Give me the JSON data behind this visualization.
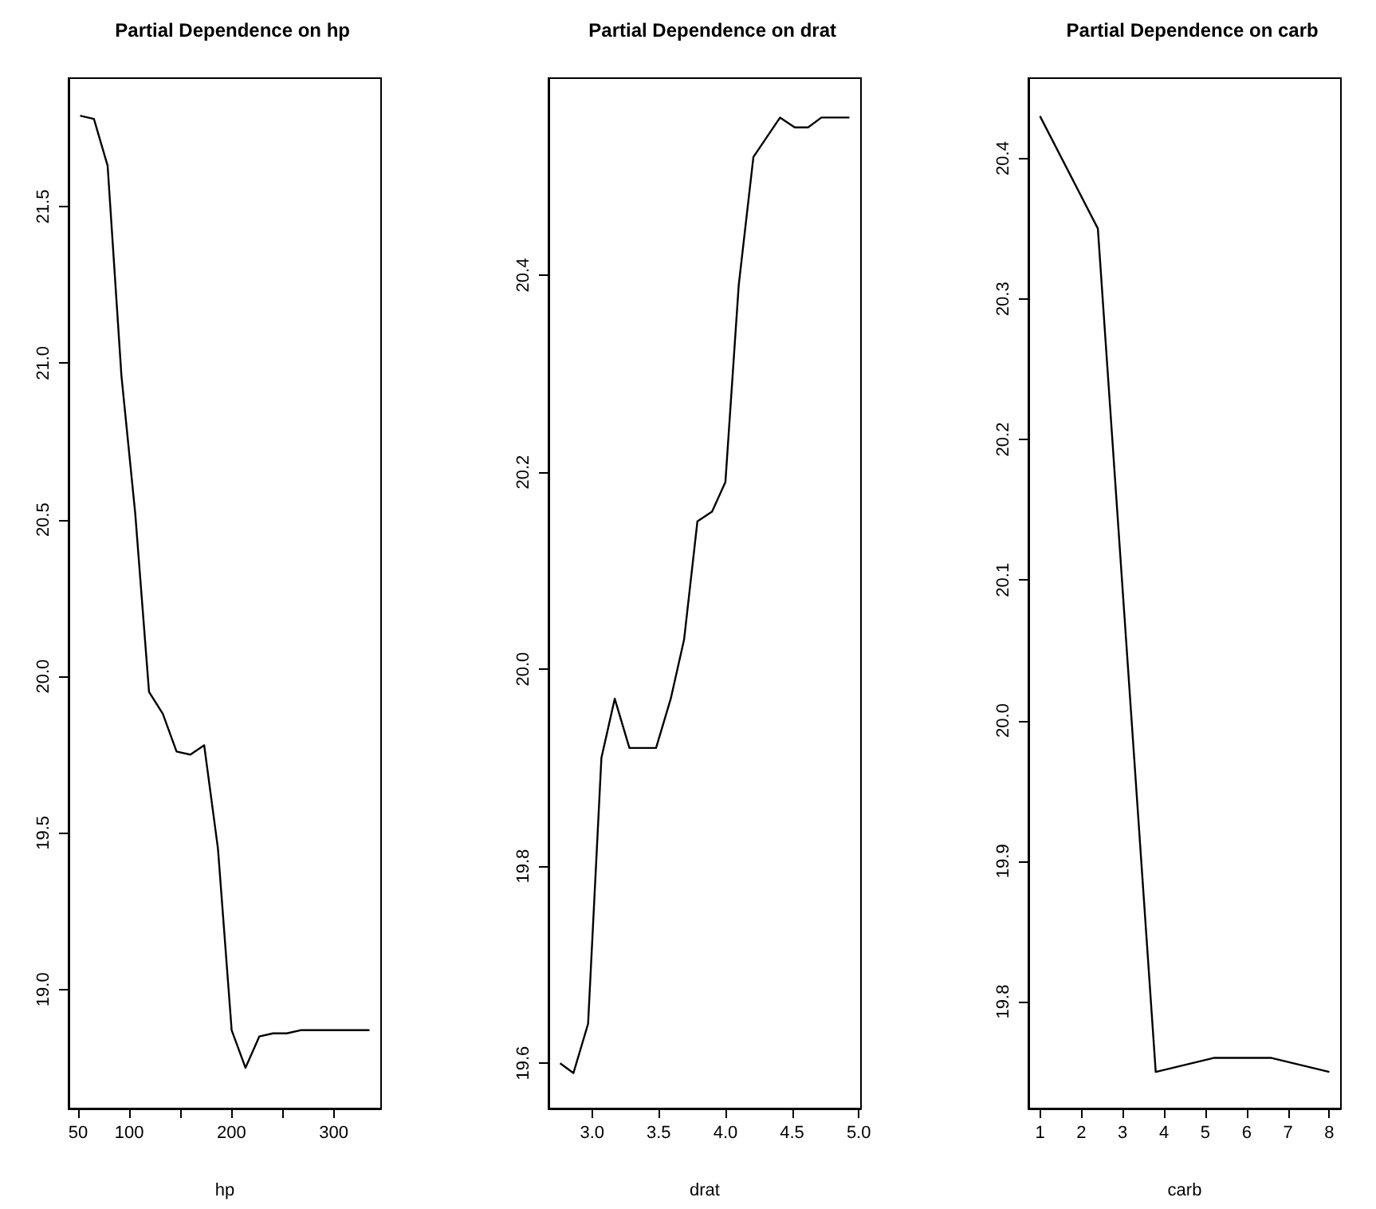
{
  "chart_data": [
    {
      "type": "line",
      "title": "Partial Dependence on hp",
      "xlabel": "hp",
      "x": [
        52,
        65.5,
        78.9,
        92.4,
        105.9,
        119.4,
        132.9,
        146.3,
        159.8,
        173.3,
        186.8,
        200.2,
        213.7,
        227.2,
        240.7,
        254.1,
        267.6,
        281.1,
        294.6,
        308.0,
        321.5,
        335
      ],
      "series": [
        {
          "color": "#000000",
          "values": [
            21.79,
            21.78,
            21.63,
            20.96,
            20.52,
            19.95,
            19.88,
            19.76,
            19.75,
            19.78,
            19.45,
            18.87,
            18.75,
            18.85,
            18.86,
            18.86,
            18.87,
            18.87,
            18.87,
            18.87,
            18.87,
            18.87
          ]
        }
      ],
      "xlim": [
        40.7,
        346.3
      ],
      "xticks": [
        50,
        100,
        {
          "value": 150,
          "label": null
        },
        200,
        {
          "value": 250,
          "label": null
        },
        300
      ],
      "ylim": [
        18.62,
        21.91
      ],
      "yticks": [
        {
          "value": 19,
          "label": "19.0"
        },
        19.5,
        {
          "value": 20,
          "label": "20.0"
        },
        20.5,
        {
          "value": 21,
          "label": "21.0"
        },
        21.5
      ],
      "grid": false
    },
    {
      "type": "line",
      "title": "Partial Dependence on drat",
      "xlabel": "drat",
      "x": [
        2.76,
        2.86,
        2.97,
        3.07,
        3.17,
        3.28,
        3.38,
        3.48,
        3.59,
        3.69,
        3.79,
        3.9,
        4.0,
        4.1,
        4.21,
        4.31,
        4.41,
        4.52,
        4.62,
        4.72,
        4.83,
        4.93
      ],
      "series": [
        {
          "color": "#000000",
          "values": [
            19.6,
            19.59,
            19.64,
            19.91,
            19.97,
            19.92,
            19.92,
            19.92,
            19.97,
            20.03,
            20.15,
            20.16,
            20.19,
            20.39,
            20.52,
            20.54,
            20.56,
            20.55,
            20.55,
            20.56,
            20.56,
            20.56
          ]
        }
      ],
      "xlim": [
        2.673,
        5.017
      ],
      "xticks": [
        {
          "value": 3,
          "label": "3.0"
        },
        3.5,
        {
          "value": 4,
          "label": "4.0"
        },
        4.5,
        {
          "value": 5,
          "label": "5.0"
        }
      ],
      "ylim": [
        19.554,
        20.6
      ],
      "yticks": [
        19.6,
        19.8,
        {
          "value": 20,
          "label": "20.0"
        },
        20.2,
        20.4
      ],
      "grid": false
    },
    {
      "type": "line",
      "title": "Partial Dependence on carb",
      "xlabel": "carb",
      "x": [
        1,
        2.4,
        3.8,
        5.2,
        6.6,
        8
      ],
      "series": [
        {
          "color": "#000000",
          "values": [
            20.43,
            20.35,
            19.75,
            19.76,
            19.76,
            19.75
          ]
        }
      ],
      "xlim": [
        0.72,
        8.28
      ],
      "xticks": [
        1,
        2,
        3,
        4,
        5,
        6,
        7,
        8
      ],
      "ylim": [
        19.724,
        20.457
      ],
      "yticks": [
        19.8,
        19.9,
        {
          "value": 20,
          "label": "20.0"
        },
        20.1,
        20.2,
        20.3,
        20.4
      ],
      "grid": false
    }
  ]
}
